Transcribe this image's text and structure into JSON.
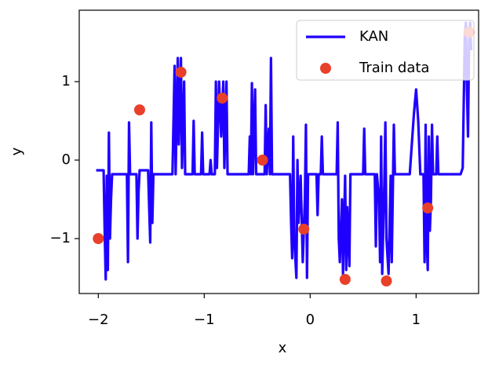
{
  "chart_data": {
    "type": "line",
    "xlabel": "x",
    "ylabel": "y",
    "xlim": [
      -2.18,
      1.59
    ],
    "ylim": [
      -1.7,
      1.91
    ],
    "xticks": [
      {
        "value": -2,
        "label": "−2"
      },
      {
        "value": -1,
        "label": "−1"
      },
      0,
      1
    ],
    "yticks": [
      {
        "value": -1,
        "label": "−1"
      },
      0,
      1
    ],
    "legend": "upper right",
    "series": [
      {
        "name": "KAN",
        "type": "line",
        "color": "#1f00ff",
        "x": [
          -2.02,
          -1.95,
          -1.94,
          -1.93,
          -1.92,
          -1.91,
          -1.9,
          -1.89,
          -1.88,
          -1.87,
          -1.73,
          -1.72,
          -1.71,
          -1.7,
          -1.64,
          -1.63,
          -1.62,
          -1.61,
          -1.53,
          -1.52,
          -1.51,
          -1.5,
          -1.49,
          -1.48,
          -1.3,
          -1.28,
          -1.27,
          -1.25,
          -1.24,
          -1.22,
          -1.21,
          -1.19,
          -1.18,
          -1.11,
          -1.1,
          -1.09,
          -1.03,
          -1.02,
          -1.01,
          -0.95,
          -0.94,
          -0.93,
          -0.9,
          -0.89,
          -0.88,
          -0.86,
          -0.84,
          -0.82,
          -0.81,
          -0.79,
          -0.78,
          -0.58,
          -0.57,
          -0.56,
          -0.55,
          -0.54,
          -0.52,
          -0.51,
          -0.43,
          -0.42,
          -0.41,
          -0.39,
          -0.38,
          -0.37,
          -0.36,
          -0.19,
          -0.18,
          -0.17,
          -0.16,
          -0.15,
          -0.13,
          -0.12,
          -0.11,
          -0.09,
          -0.07,
          -0.05,
          -0.04,
          -0.03,
          -0.02,
          0.06,
          0.07,
          0.08,
          0.1,
          0.11,
          0.12,
          0.25,
          0.26,
          0.27,
          0.28,
          0.3,
          0.31,
          0.33,
          0.34,
          0.35,
          0.37,
          0.38,
          0.5,
          0.51,
          0.52,
          0.61,
          0.62,
          0.63,
          0.65,
          0.66,
          0.67,
          0.68,
          0.7,
          0.71,
          0.72,
          0.74,
          0.76,
          0.77,
          0.79,
          0.8,
          0.94,
          0.98,
          1.0,
          1.02,
          1.04,
          1.07,
          1.08,
          1.09,
          1.1,
          1.11,
          1.12,
          1.13,
          1.14,
          1.15,
          1.16,
          1.19,
          1.2,
          1.21,
          1.42,
          1.44,
          1.46,
          1.47,
          1.48,
          1.49,
          1.5,
          1.51,
          1.52
        ],
        "values": [
          -0.13,
          -0.13,
          -0.9,
          -1.52,
          -0.2,
          -1.4,
          0.35,
          -1.0,
          -0.5,
          -0.18,
          -0.18,
          -1.3,
          0.48,
          -0.18,
          -0.18,
          -1.0,
          -0.4,
          -0.13,
          -0.13,
          -0.6,
          -1.05,
          0.48,
          -0.8,
          -0.18,
          -0.18,
          1.2,
          -0.18,
          1.3,
          0.2,
          1.3,
          -0.1,
          1.0,
          -0.18,
          -0.18,
          0.5,
          -0.18,
          -0.18,
          0.35,
          -0.18,
          -0.18,
          0.0,
          -0.18,
          -0.18,
          1.0,
          -0.1,
          1.0,
          0.3,
          1.0,
          -0.1,
          1.0,
          -0.18,
          -0.18,
          0.3,
          -0.18,
          0.98,
          -0.18,
          0.9,
          -0.18,
          -0.18,
          0.7,
          -0.18,
          0.4,
          -0.18,
          1.3,
          -0.18,
          -0.18,
          -0.8,
          -1.25,
          0.3,
          -1.0,
          -1.5,
          0.0,
          -0.8,
          -0.2,
          -1.3,
          -0.5,
          0.45,
          -1.5,
          -0.18,
          -0.18,
          -0.7,
          -0.18,
          -0.18,
          0.3,
          -0.18,
          -0.18,
          0.48,
          -1.0,
          -1.3,
          -0.5,
          -1.45,
          -0.2,
          -1.4,
          -0.6,
          -1.35,
          -0.18,
          -0.18,
          0.4,
          -0.18,
          -0.18,
          -1.1,
          -0.18,
          -0.5,
          -1.3,
          0.3,
          -1.45,
          -0.3,
          0.48,
          -1.0,
          -1.45,
          -0.2,
          -1.3,
          0.45,
          -0.18,
          -0.18,
          0.6,
          0.9,
          0.5,
          -0.18,
          -0.18,
          -1.3,
          0.45,
          -1.0,
          -1.4,
          0.3,
          -0.9,
          -0.5,
          0.45,
          -0.18,
          -0.18,
          0.3,
          -0.18,
          -0.18,
          -0.1,
          1.6,
          1.75,
          0.9,
          0.3,
          1.5,
          1.75,
          1.4
        ]
      },
      {
        "name": "Train data",
        "type": "scatter",
        "color": "#e8402a",
        "x": [
          -2.0,
          -1.61,
          -1.22,
          -0.83,
          -0.45,
          -0.06,
          0.33,
          0.72,
          1.11,
          1.5
        ],
        "values": [
          -1.0,
          0.64,
          1.12,
          0.79,
          0.0,
          -0.88,
          -1.52,
          -1.54,
          -0.61,
          1.63
        ]
      }
    ]
  }
}
